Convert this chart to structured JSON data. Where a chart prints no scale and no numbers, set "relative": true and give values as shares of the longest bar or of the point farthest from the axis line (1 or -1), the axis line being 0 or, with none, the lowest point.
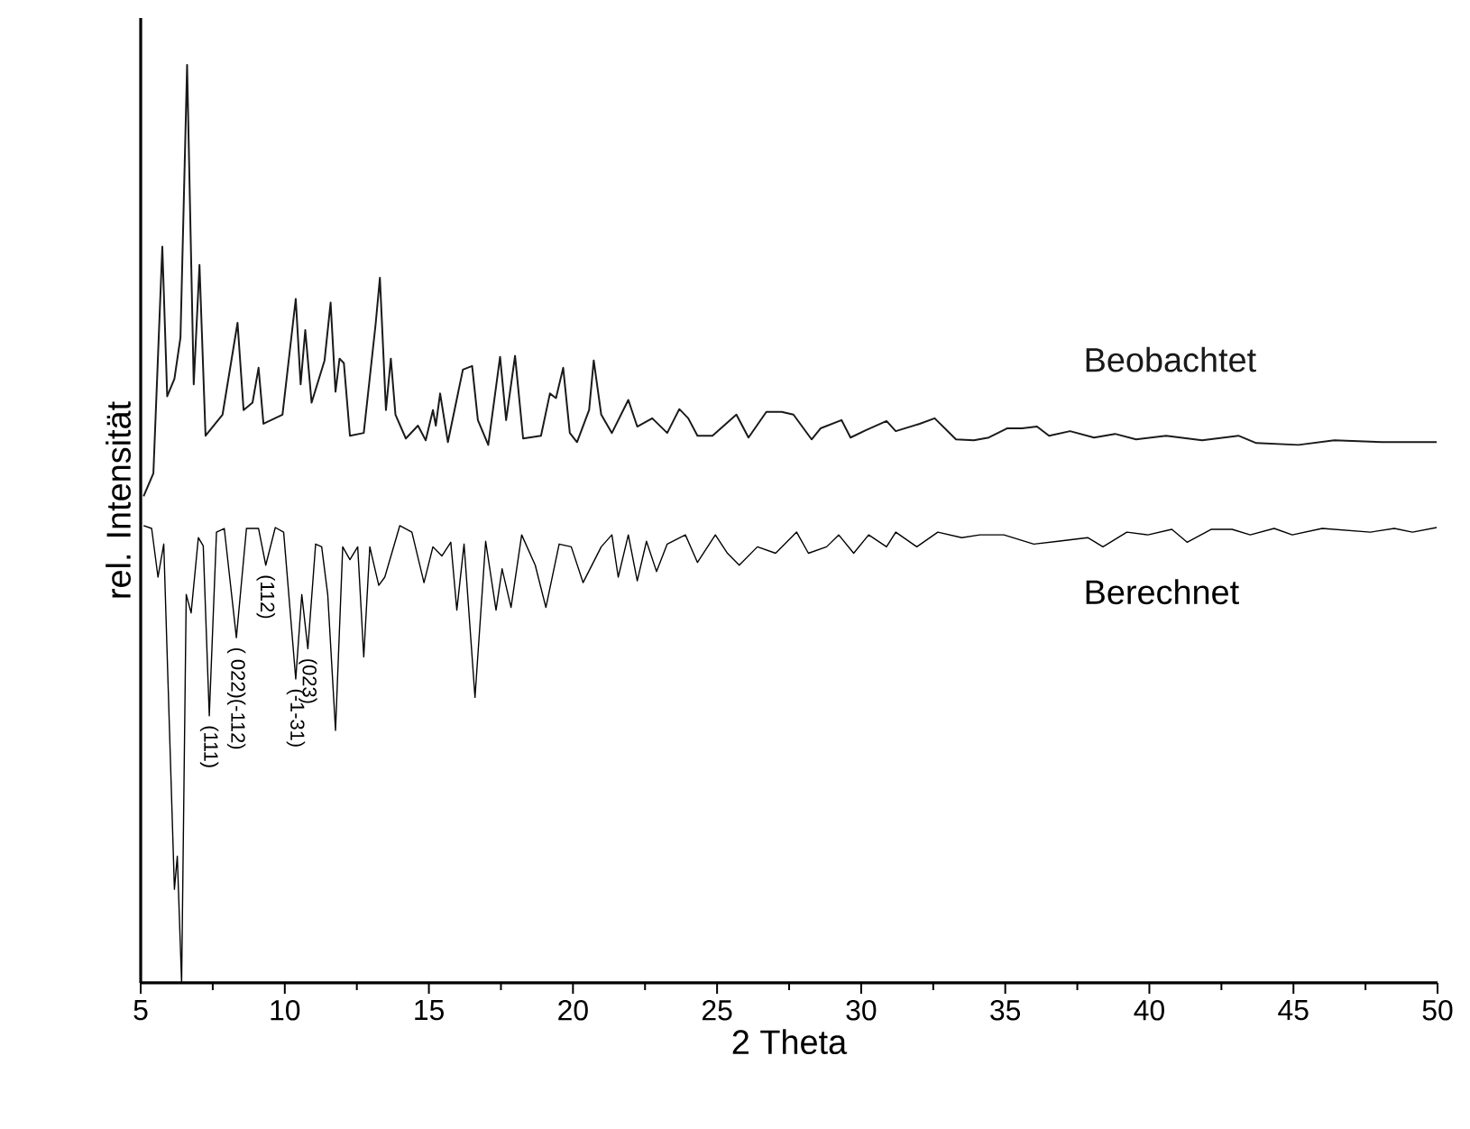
{
  "chart_data": {
    "type": "line",
    "xlabel": "2 Theta",
    "ylabel": "rel. Intensität",
    "relative": true,
    "xlim": [
      5,
      50
    ],
    "xticks": [
      5,
      10,
      15,
      20,
      25,
      30,
      35,
      40,
      45,
      50
    ],
    "grid": false,
    "legend": false,
    "marker": "none",
    "line_style": "solid",
    "series": [
      {
        "name": "Beobachtet",
        "color": "#1a1a1a",
        "x": [
          5.1,
          5.44,
          5.75,
          5.92,
          6.17,
          6.38,
          6.61,
          6.84,
          7.04,
          7.25,
          7.84,
          8.36,
          8.57,
          8.88,
          9.09,
          9.26,
          9.92,
          10.38,
          10.55,
          10.71,
          10.93,
          11.38,
          11.59,
          11.76,
          11.9,
          12.05,
          12.26,
          12.74,
          13.15,
          13.3,
          13.51,
          13.68,
          13.84,
          14.2,
          14.62,
          14.89,
          15.14,
          15.24,
          15.39,
          15.66,
          16.18,
          16.5,
          16.7,
          17.06,
          17.47,
          17.68,
          17.99,
          18.27,
          18.89,
          19.2,
          19.41,
          19.66,
          19.89,
          20.14,
          20.56,
          20.72,
          20.98,
          21.35,
          21.92,
          22.23,
          22.75,
          23.27,
          23.69,
          24.0,
          24.32,
          24.84,
          25.67,
          26.09,
          26.71,
          27.24,
          27.65,
          28.28,
          28.59,
          29.32,
          29.63,
          30.16,
          30.88,
          31.2,
          32.03,
          32.55,
          33.29,
          33.91,
          34.43,
          35.06,
          35.58,
          36.1,
          36.52,
          37.25,
          38.08,
          38.81,
          39.54,
          40.58,
          41.83,
          43.09,
          43.71,
          45.17,
          46.42,
          48.09,
          49.97
        ],
        "values": [
          0.53,
          0.555,
          0.802,
          0.639,
          0.658,
          0.703,
          1.0,
          0.652,
          0.782,
          0.596,
          0.619,
          0.719,
          0.624,
          0.632,
          0.67,
          0.609,
          0.619,
          0.745,
          0.652,
          0.711,
          0.632,
          0.678,
          0.741,
          0.644,
          0.68,
          0.675,
          0.596,
          0.599,
          0.717,
          0.768,
          0.624,
          0.68,
          0.619,
          0.593,
          0.607,
          0.591,
          0.624,
          0.607,
          0.642,
          0.589,
          0.668,
          0.672,
          0.613,
          0.586,
          0.682,
          0.613,
          0.683,
          0.593,
          0.596,
          0.642,
          0.637,
          0.67,
          0.599,
          0.589,
          0.624,
          0.678,
          0.619,
          0.599,
          0.635,
          0.606,
          0.615,
          0.599,
          0.625,
          0.615,
          0.596,
          0.596,
          0.619,
          0.594,
          0.622,
          0.622,
          0.619,
          0.592,
          0.604,
          0.613,
          0.594,
          0.602,
          0.612,
          0.601,
          0.609,
          0.615,
          0.592,
          0.591,
          0.594,
          0.604,
          0.604,
          0.606,
          0.596,
          0.601,
          0.594,
          0.598,
          0.592,
          0.596,
          0.591,
          0.596,
          0.588,
          0.586,
          0.591,
          0.589,
          0.589
        ]
      },
      {
        "name": "Berechnet",
        "color": "#000000",
        "x": [
          5.1,
          5.38,
          5.6,
          5.8,
          6.17,
          6.27,
          6.42,
          6.58,
          6.75,
          7.0,
          7.17,
          7.38,
          7.63,
          7.9,
          8.32,
          8.67,
          9.09,
          9.34,
          9.67,
          9.96,
          10.38,
          10.59,
          10.8,
          11.07,
          11.28,
          11.49,
          11.76,
          12.01,
          12.26,
          12.53,
          12.74,
          12.95,
          13.26,
          13.47,
          13.99,
          14.41,
          14.83,
          15.14,
          15.45,
          15.76,
          15.97,
          16.22,
          16.6,
          16.97,
          17.33,
          17.54,
          17.85,
          18.22,
          18.69,
          19.06,
          19.52,
          19.94,
          20.35,
          20.98,
          21.35,
          21.57,
          21.92,
          22.23,
          22.55,
          22.9,
          23.27,
          23.9,
          24.32,
          24.94,
          25.36,
          25.77,
          26.4,
          27.03,
          27.76,
          28.17,
          28.8,
          29.22,
          29.74,
          30.26,
          30.88,
          31.2,
          31.93,
          32.66,
          33.49,
          34.12,
          34.95,
          35.99,
          36.83,
          37.86,
          38.39,
          39.22,
          39.95,
          40.78,
          41.31,
          42.14,
          42.87,
          43.5,
          44.33,
          44.96,
          46.0,
          47.67,
          48.5,
          49.13,
          49.97
        ],
        "values": [
          0.498,
          0.495,
          0.442,
          0.478,
          0.102,
          0.138,
          0.0,
          0.423,
          0.403,
          0.485,
          0.476,
          0.291,
          0.491,
          0.495,
          0.376,
          0.495,
          0.495,
          0.455,
          0.496,
          0.491,
          0.331,
          0.423,
          0.364,
          0.478,
          0.475,
          0.423,
          0.275,
          0.475,
          0.461,
          0.475,
          0.355,
          0.475,
          0.433,
          0.442,
          0.498,
          0.491,
          0.436,
          0.475,
          0.465,
          0.48,
          0.406,
          0.478,
          0.311,
          0.481,
          0.406,
          0.451,
          0.409,
          0.488,
          0.455,
          0.409,
          0.478,
          0.475,
          0.436,
          0.475,
          0.488,
          0.442,
          0.488,
          0.438,
          0.481,
          0.448,
          0.478,
          0.488,
          0.458,
          0.488,
          0.468,
          0.455,
          0.475,
          0.468,
          0.491,
          0.468,
          0.475,
          0.488,
          0.468,
          0.488,
          0.475,
          0.491,
          0.475,
          0.491,
          0.485,
          0.488,
          0.488,
          0.478,
          0.481,
          0.485,
          0.475,
          0.491,
          0.488,
          0.494,
          0.48,
          0.494,
          0.494,
          0.488,
          0.495,
          0.488,
          0.495,
          0.491,
          0.495,
          0.491,
          0.496
        ]
      }
    ],
    "annotations": [
      {
        "text": "(111)",
        "x": 7.38,
        "y": 0.291
      },
      {
        "text": "( 022)(-112)",
        "x": 8.32,
        "y": 0.376
      },
      {
        "text": "(112)",
        "x": 9.34,
        "y": 0.455
      },
      {
        "text": "(-1-31)",
        "x": 10.38,
        "y": 0.331
      },
      {
        "text": "(023)",
        "x": 10.8,
        "y": 0.364
      }
    ]
  }
}
